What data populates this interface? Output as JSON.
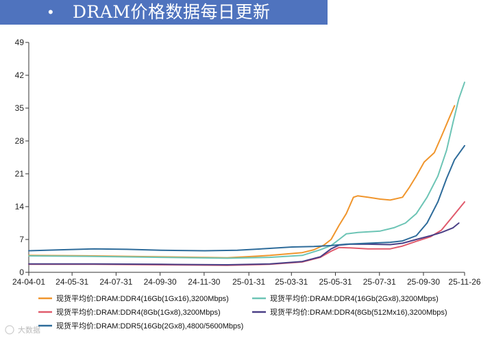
{
  "header": {
    "bullet": "•",
    "title": "DRAM价格数据每日更新"
  },
  "watermark": "大数据",
  "colors": {
    "accent": "#4f73be",
    "series": [
      "#f0952c",
      "#6cc4b5",
      "#e05a6c",
      "#4a3f86",
      "#2d6b9a"
    ]
  },
  "chart_data": {
    "type": "line",
    "title": "",
    "xlabel": "",
    "ylabel": "",
    "ylim": [
      0,
      49
    ],
    "yticks": [
      0,
      7,
      14,
      21,
      28,
      35,
      42,
      49
    ],
    "xlim": [
      "2024-04-01",
      "2025-11-26"
    ],
    "xticks": [
      {
        "date": "2024-04-01",
        "label": "24-04-01"
      },
      {
        "date": "2024-05-31",
        "label": "24-05-31"
      },
      {
        "date": "2024-07-31",
        "label": "24-07-31"
      },
      {
        "date": "2024-09-30",
        "label": "24-09-30"
      },
      {
        "date": "2024-11-30",
        "label": "24-11-30"
      },
      {
        "date": "2025-01-31",
        "label": "25-01-31"
      },
      {
        "date": "2025-03-31",
        "label": "25-03-31"
      },
      {
        "date": "2025-05-31",
        "label": "25-05-31"
      },
      {
        "date": "2025-07-31",
        "label": "25-07-31"
      },
      {
        "date": "2025-09-30",
        "label": "25-09-30"
      },
      {
        "date": "2025-11-26",
        "label": "25-11-26"
      }
    ],
    "grid": "vertical-left-axis",
    "legend_position": "bottom",
    "series": [
      {
        "name": "现货平均价:DRAM:DDR4(16Gb(1Gx16),3200Mbps)",
        "color": "#f0952c",
        "points": [
          [
            "2024-04-01",
            3.6
          ],
          [
            "2024-07-01",
            3.5
          ],
          [
            "2024-10-01",
            3.3
          ],
          [
            "2025-01-01",
            3.1
          ],
          [
            "2025-03-01",
            3.6
          ],
          [
            "2025-04-15",
            4.2
          ],
          [
            "2025-05-01",
            4.8
          ],
          [
            "2025-05-15",
            5.8
          ],
          [
            "2025-05-25",
            7.0
          ],
          [
            "2025-06-05",
            10.0
          ],
          [
            "2025-06-15",
            12.5
          ],
          [
            "2025-06-25",
            16.0
          ],
          [
            "2025-07-01",
            16.3
          ],
          [
            "2025-07-15",
            16.0
          ],
          [
            "2025-08-01",
            15.6
          ],
          [
            "2025-08-15",
            15.4
          ],
          [
            "2025-09-01",
            16.0
          ],
          [
            "2025-09-10",
            18.0
          ],
          [
            "2025-09-20",
            20.5
          ],
          [
            "2025-10-01",
            23.5
          ],
          [
            "2025-10-15",
            25.5
          ],
          [
            "2025-10-25",
            29.0
          ],
          [
            "2025-11-05",
            33.0
          ],
          [
            "2025-11-12",
            35.5
          ]
        ]
      },
      {
        "name": "现货平均价:DRAM:DDR4(16Gb(2Gx8),3200Mbps)",
        "color": "#6cc4b5",
        "points": [
          [
            "2024-04-01",
            3.5
          ],
          [
            "2024-07-01",
            3.4
          ],
          [
            "2024-10-01",
            3.2
          ],
          [
            "2025-01-01",
            3.0
          ],
          [
            "2025-03-01",
            3.2
          ],
          [
            "2025-04-15",
            3.6
          ],
          [
            "2025-05-10",
            4.8
          ],
          [
            "2025-05-25",
            5.7
          ],
          [
            "2025-06-05",
            7.0
          ],
          [
            "2025-06-15",
            8.2
          ],
          [
            "2025-07-01",
            8.5
          ],
          [
            "2025-08-01",
            8.8
          ],
          [
            "2025-08-20",
            9.5
          ],
          [
            "2025-09-05",
            10.5
          ],
          [
            "2025-09-20",
            12.5
          ],
          [
            "2025-10-05",
            16.0
          ],
          [
            "2025-10-20",
            20.5
          ],
          [
            "2025-11-01",
            26.0
          ],
          [
            "2025-11-10",
            32.0
          ],
          [
            "2025-11-18",
            37.0
          ],
          [
            "2025-11-26",
            40.5
          ]
        ]
      },
      {
        "name": "现货平均价:DRAM:DDR4(8Gb(1Gx8),3200Mbps)",
        "color": "#e05a6c",
        "points": [
          [
            "2024-04-01",
            1.7
          ],
          [
            "2024-07-01",
            1.7
          ],
          [
            "2024-10-01",
            1.6
          ],
          [
            "2025-01-01",
            1.5
          ],
          [
            "2025-03-01",
            1.7
          ],
          [
            "2025-04-15",
            2.2
          ],
          [
            "2025-05-10",
            3.2
          ],
          [
            "2025-05-25",
            4.5
          ],
          [
            "2025-06-05",
            5.3
          ],
          [
            "2025-06-20",
            5.2
          ],
          [
            "2025-07-15",
            5.0
          ],
          [
            "2025-08-15",
            5.0
          ],
          [
            "2025-09-01",
            5.6
          ],
          [
            "2025-09-20",
            6.6
          ],
          [
            "2025-10-10",
            7.6
          ],
          [
            "2025-10-25",
            9.0
          ],
          [
            "2025-11-10",
            12.0
          ],
          [
            "2025-11-26",
            15.0
          ]
        ]
      },
      {
        "name": "现货平均价:DRAM:DDR4(8Gb(512Mx16),3200Mbps)",
        "color": "#4a3f86",
        "points": [
          [
            "2024-04-01",
            1.8
          ],
          [
            "2024-07-01",
            1.8
          ],
          [
            "2024-10-01",
            1.7
          ],
          [
            "2025-01-01",
            1.6
          ],
          [
            "2025-03-01",
            1.8
          ],
          [
            "2025-04-15",
            2.3
          ],
          [
            "2025-05-10",
            3.3
          ],
          [
            "2025-05-25",
            5.0
          ],
          [
            "2025-06-05",
            5.8
          ],
          [
            "2025-06-20",
            6.0
          ],
          [
            "2025-07-15",
            6.0
          ],
          [
            "2025-08-15",
            5.9
          ],
          [
            "2025-09-01",
            6.2
          ],
          [
            "2025-09-20",
            7.0
          ],
          [
            "2025-10-10",
            7.8
          ],
          [
            "2025-10-25",
            8.5
          ],
          [
            "2025-11-10",
            9.5
          ],
          [
            "2025-11-18",
            10.5
          ]
        ]
      },
      {
        "name": "现货平均价:DRAM:DDR5(16Gb(2Gx8),4800/5600Mbps)",
        "color": "#2d6b9a",
        "points": [
          [
            "2024-04-01",
            4.6
          ],
          [
            "2024-05-15",
            4.8
          ],
          [
            "2024-07-01",
            5.0
          ],
          [
            "2024-08-15",
            4.9
          ],
          [
            "2024-10-01",
            4.7
          ],
          [
            "2024-12-01",
            4.6
          ],
          [
            "2025-01-15",
            4.7
          ],
          [
            "2025-03-01",
            5.1
          ],
          [
            "2025-04-01",
            5.4
          ],
          [
            "2025-05-01",
            5.5
          ],
          [
            "2025-05-25",
            5.7
          ],
          [
            "2025-06-15",
            6.0
          ],
          [
            "2025-07-15",
            6.2
          ],
          [
            "2025-08-15",
            6.4
          ],
          [
            "2025-09-01",
            6.7
          ],
          [
            "2025-09-20",
            7.8
          ],
          [
            "2025-10-05",
            10.5
          ],
          [
            "2025-10-20",
            15.0
          ],
          [
            "2025-11-01",
            20.0
          ],
          [
            "2025-11-12",
            24.0
          ],
          [
            "2025-11-26",
            27.0
          ]
        ]
      }
    ]
  }
}
